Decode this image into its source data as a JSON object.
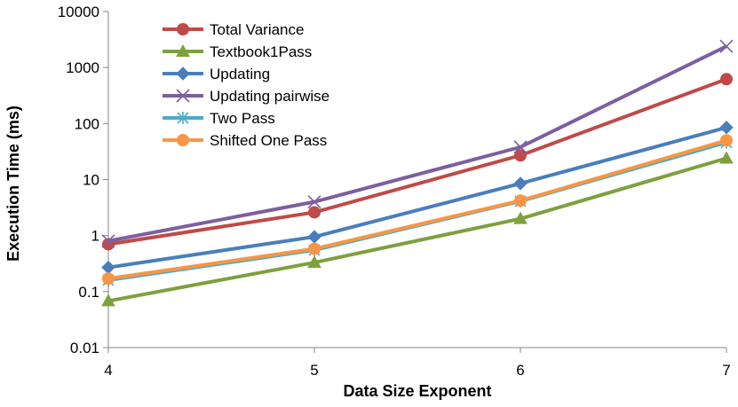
{
  "chart_data": {
    "type": "line",
    "title": "",
    "xlabel": "Data Size Exponent",
    "ylabel": "Execution Time (ms)",
    "y_scale": "log",
    "ylim": [
      0.01,
      10000
    ],
    "xlim": [
      4,
      7
    ],
    "grid": false,
    "legend_position": "top-left",
    "x": [
      4,
      5,
      6,
      7
    ],
    "x_ticks": [
      "4",
      "5",
      "6",
      "7"
    ],
    "y_ticks": [
      "0.01",
      "0.1",
      "1",
      "10",
      "100",
      "1000",
      "10000"
    ],
    "series": [
      {
        "name": "Total Variance",
        "color": "#BE4B48",
        "marker": "circle",
        "values": [
          0.7,
          2.6,
          27,
          620
        ]
      },
      {
        "name": "Textbook1Pass",
        "color": "#7EA03F",
        "marker": "triangle",
        "values": [
          0.068,
          0.33,
          2.0,
          24
        ]
      },
      {
        "name": "Updating",
        "color": "#4A7EBB",
        "marker": "diamond",
        "values": [
          0.27,
          0.95,
          8.5,
          85
        ]
      },
      {
        "name": "Updating pairwise",
        "color": "#7D5FA0",
        "marker": "x",
        "values": [
          0.8,
          4.0,
          38,
          2400
        ]
      },
      {
        "name": "Two Pass",
        "color": "#4BACC6",
        "marker": "asterisk",
        "values": [
          0.16,
          0.55,
          4.1,
          46
        ]
      },
      {
        "name": "Shifted One Pass",
        "color": "#F79646",
        "marker": "circle",
        "values": [
          0.17,
          0.58,
          4.2,
          50
        ]
      }
    ]
  }
}
